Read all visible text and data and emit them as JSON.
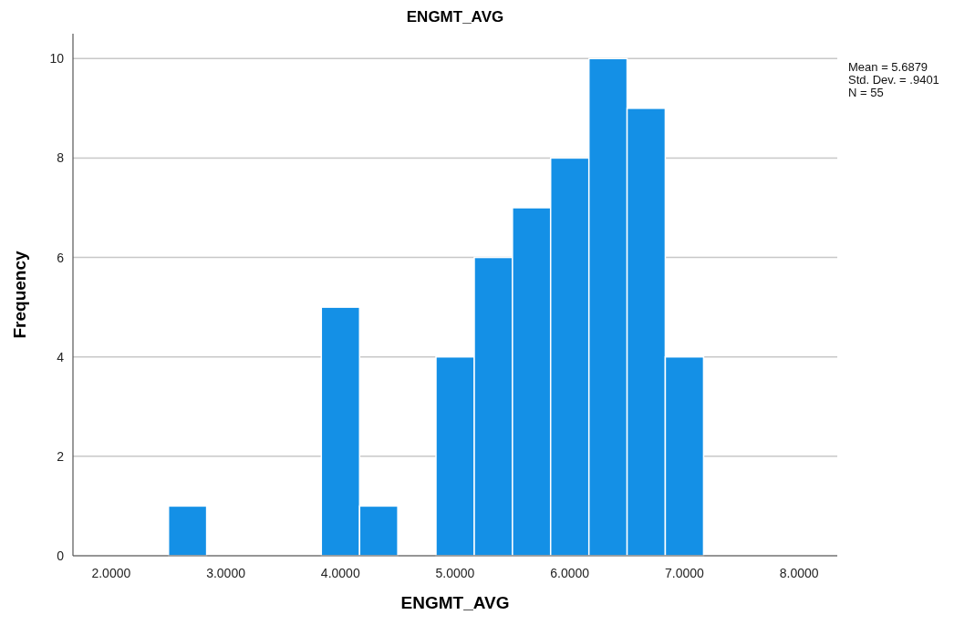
{
  "chart_data": {
    "type": "histogram",
    "title": "ENGMT_AVG",
    "xlabel": "ENGMT_AVG",
    "ylabel": "Frequency",
    "bins": [
      2.5,
      2.833,
      3.167,
      3.5,
      3.833,
      4.167,
      4.5,
      4.833,
      5.167,
      5.5,
      5.833,
      6.167,
      6.5,
      6.833,
      7.167
    ],
    "values": [
      1,
      0,
      0,
      0,
      5,
      1,
      0,
      4,
      6,
      7,
      8,
      10,
      9,
      4
    ],
    "color": "#1490e6",
    "xlim": [
      1.667,
      8.333
    ],
    "xticks": [
      {
        "value": 2,
        "label": "2.0000"
      },
      {
        "value": 3,
        "label": "3.0000"
      },
      {
        "value": 4,
        "label": "4.0000"
      },
      {
        "value": 5,
        "label": "5.0000"
      },
      {
        "value": 6,
        "label": "6.0000"
      },
      {
        "value": 7,
        "label": "7.0000"
      },
      {
        "value": 8,
        "label": "8.0000"
      }
    ],
    "ylim": [
      0,
      10.5
    ],
    "yticks": [
      0,
      2,
      4,
      6,
      8,
      10
    ],
    "grid": "y",
    "annotations": [
      "Mean = 5.6879",
      "Std. Dev. = .9401",
      "N = 55"
    ]
  }
}
